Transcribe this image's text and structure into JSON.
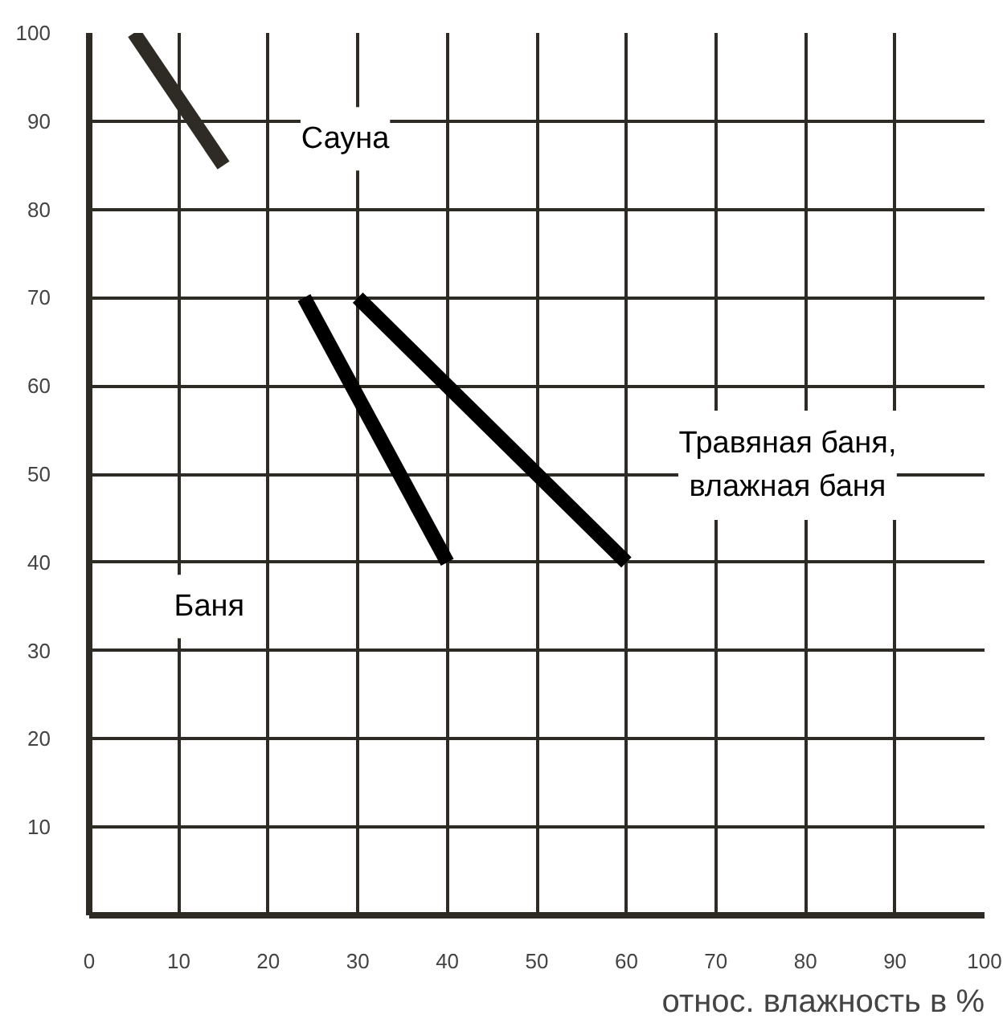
{
  "chart_data": {
    "type": "line",
    "xlabel": "относ. влажность в %",
    "xlim": [
      0,
      100
    ],
    "ylim": [
      0,
      100
    ],
    "xticks": [
      0,
      10,
      20,
      30,
      40,
      50,
      60,
      70,
      80,
      90,
      100
    ],
    "yticks": [
      10,
      20,
      30,
      40,
      50,
      60,
      70,
      80,
      90,
      100
    ],
    "grid": true,
    "marker": "none",
    "line_style": "solid",
    "series": [
      {
        "name": "Сауна",
        "x": [
          5,
          15
        ],
        "values": [
          100,
          85
        ],
        "color": "#2e2a24"
      },
      {
        "x": [
          24,
          40
        ],
        "values": [
          70,
          40
        ],
        "color": "#000000"
      },
      {
        "name": "Травяная баня,\nвлажная баня",
        "x": [
          30,
          60
        ],
        "values": [
          70,
          40
        ],
        "color": "#000000"
      }
    ],
    "annotations": [
      "Баня"
    ]
  }
}
